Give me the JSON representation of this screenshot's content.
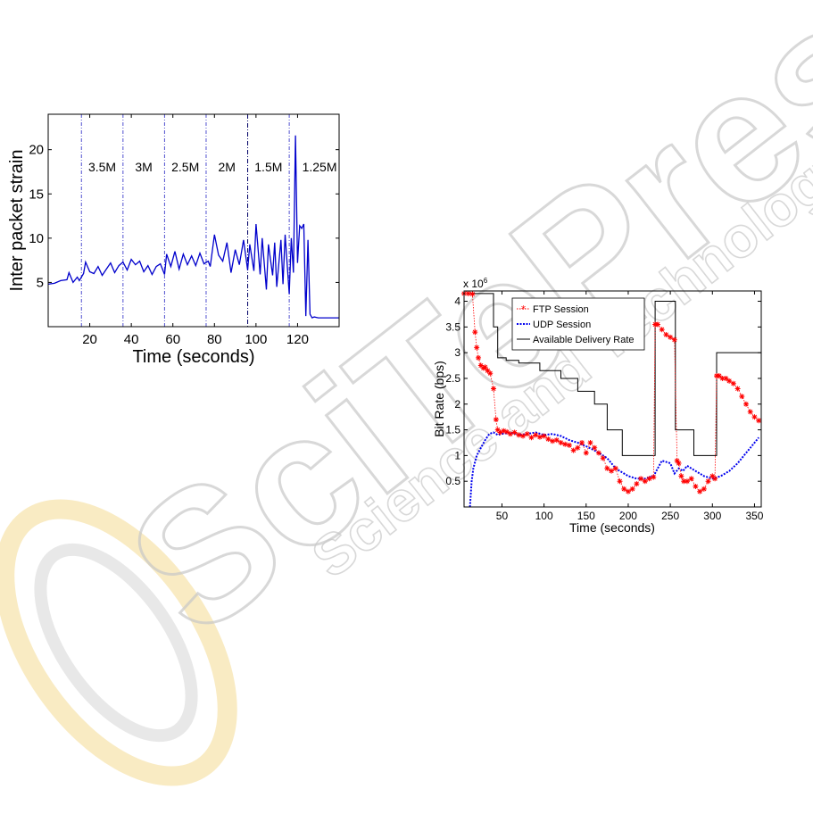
{
  "watermark": {
    "word": "SciTePress",
    "tagline": "Science and Technology Publications",
    "color": "#c8c8c8",
    "logo_color": "#f2d27a"
  },
  "chart_data": [
    {
      "type": "line",
      "title": "",
      "xlabel": "Time (seconds)",
      "ylabel": "Inter packet strain",
      "xlim": [
        0,
        140
      ],
      "ylim": [
        0,
        24
      ],
      "xticks": [
        20,
        40,
        60,
        80,
        100,
        120
      ],
      "yticks": [
        5,
        10,
        15,
        20
      ],
      "grid": false,
      "series": [
        {
          "color": "#0000cc",
          "x": [
            0,
            3,
            6,
            9,
            10,
            12,
            14,
            15,
            17,
            18,
            20,
            22,
            24,
            26,
            28,
            30,
            32,
            34,
            36,
            38,
            40,
            42,
            44,
            46,
            48,
            50,
            52,
            54,
            56,
            57,
            59,
            61,
            63,
            65,
            67,
            69,
            71,
            73,
            75,
            77,
            78,
            80,
            82,
            84,
            86,
            88,
            90,
            92,
            94,
            96,
            97,
            99,
            100,
            102,
            103,
            105,
            106,
            108,
            109,
            110,
            112,
            113,
            114,
            116,
            117,
            118,
            119,
            120,
            121,
            122,
            123,
            124,
            125,
            126,
            127,
            128,
            130,
            135,
            140
          ],
          "y": [
            4.8,
            4.9,
            5.2,
            5.3,
            6.1,
            5.0,
            5.6,
            5.2,
            6.0,
            7.3,
            6.2,
            6.0,
            6.8,
            5.8,
            6.5,
            7.2,
            6.1,
            6.9,
            7.3,
            6.4,
            7.6,
            7.0,
            7.4,
            6.2,
            6.9,
            5.9,
            6.8,
            7.1,
            5.9,
            8.2,
            6.8,
            8.5,
            6.5,
            8.2,
            7.0,
            8.0,
            6.9,
            8.3,
            7.1,
            7.4,
            6.8,
            10.4,
            8.1,
            7.4,
            9.5,
            6.1,
            8.7,
            7.0,
            9.8,
            6.4,
            9.3,
            6.3,
            11.6,
            5.9,
            10.0,
            4.2,
            9.3,
            5.8,
            9.5,
            4.5,
            9.8,
            4.8,
            10.4,
            3.7,
            10.0,
            6.1,
            21.6,
            7.2,
            11.4,
            11.1,
            11.6,
            1.2,
            9.8,
            1.4,
            1.0,
            1.1,
            1.0,
            1.0,
            1.0
          ]
        }
      ],
      "phase_boundaries": [
        16,
        36,
        56,
        76,
        96,
        116
      ],
      "phase_labels": [
        "3.5M",
        "3M",
        "2.5M",
        "2M",
        "1.5M",
        "1.25M"
      ]
    },
    {
      "type": "line",
      "title": "",
      "xlabel": "Time (seconds)",
      "ylabel": "Bit Rate (bps)",
      "y_multiplier": "x 10",
      "y_exponent": "6",
      "xlim": [
        5,
        358
      ],
      "ylim": [
        0,
        4.2
      ],
      "xticks": [
        50,
        100,
        150,
        200,
        250,
        300,
        350
      ],
      "yticks": [
        0.5,
        1,
        1.5,
        2,
        2.5,
        3,
        3.5,
        4
      ],
      "grid": false,
      "legend_position": "top-right",
      "series": [
        {
          "name": "FTP Session",
          "color": "#ff0000",
          "x": [
            5,
            10,
            15,
            18,
            20,
            22,
            25,
            28,
            30,
            33,
            36,
            40,
            43,
            45,
            48,
            52,
            56,
            60,
            65,
            70,
            75,
            80,
            85,
            90,
            95,
            100,
            105,
            110,
            115,
            120,
            125,
            130,
            135,
            140,
            145,
            150,
            155,
            160,
            165,
            170,
            175,
            180,
            185,
            190,
            195,
            200,
            205,
            210,
            215,
            220,
            225,
            230,
            232,
            235,
            240,
            245,
            250,
            255,
            258,
            260,
            263,
            266,
            270,
            275,
            280,
            285,
            290,
            295,
            300,
            303,
            305,
            308,
            312,
            316,
            320,
            325,
            330,
            335,
            340,
            345,
            350,
            355
          ],
          "y": [
            4.15,
            4.15,
            4.14,
            3.4,
            3.1,
            2.9,
            2.75,
            2.7,
            2.72,
            2.65,
            2.6,
            2.3,
            1.7,
            1.5,
            1.45,
            1.48,
            1.46,
            1.42,
            1.45,
            1.4,
            1.38,
            1.42,
            1.35,
            1.4,
            1.36,
            1.38,
            1.32,
            1.28,
            1.3,
            1.25,
            1.22,
            1.2,
            1.1,
            1.15,
            1.25,
            1.05,
            1.25,
            1.15,
            1.05,
            0.95,
            0.75,
            0.7,
            0.75,
            0.5,
            0.35,
            0.3,
            0.35,
            0.45,
            0.55,
            0.5,
            0.55,
            0.58,
            3.55,
            3.55,
            3.45,
            3.35,
            3.3,
            3.25,
            0.9,
            0.85,
            0.6,
            0.5,
            0.5,
            0.55,
            0.4,
            0.3,
            0.35,
            0.5,
            0.6,
            0.55,
            2.55,
            2.55,
            2.5,
            2.5,
            2.45,
            2.4,
            2.3,
            2.15,
            2.0,
            1.85,
            1.75,
            1.68
          ]
        },
        {
          "name": "UDP Session",
          "color": "#0000ee",
          "x": [
            12,
            14,
            16,
            20,
            25,
            30,
            35,
            40,
            45,
            50,
            60,
            70,
            80,
            90,
            100,
            110,
            120,
            130,
            140,
            150,
            160,
            165,
            170,
            175,
            180,
            185,
            190,
            195,
            200,
            210,
            220,
            230,
            235,
            240,
            250,
            255,
            260,
            265,
            270,
            280,
            290,
            300,
            310,
            320,
            330,
            340,
            350,
            355
          ],
          "y": [
            0.0,
            0.5,
            0.75,
            1.0,
            1.15,
            1.3,
            1.42,
            1.45,
            1.4,
            1.42,
            1.45,
            1.4,
            1.42,
            1.45,
            1.4,
            1.42,
            1.38,
            1.3,
            1.25,
            1.18,
            1.1,
            1.05,
            1.0,
            0.95,
            0.85,
            0.75,
            0.7,
            0.65,
            0.6,
            0.55,
            0.55,
            0.6,
            0.75,
            0.9,
            0.85,
            0.65,
            0.75,
            0.7,
            0.8,
            0.7,
            0.6,
            0.55,
            0.6,
            0.7,
            0.85,
            1.05,
            1.25,
            1.35
          ]
        },
        {
          "name": "Available Delivery Rate",
          "color": "#000000",
          "x": [
            5,
            40,
            40,
            45,
            45,
            55,
            55,
            70,
            70,
            95,
            95,
            120,
            120,
            140,
            140,
            160,
            160,
            175,
            175,
            193,
            193,
            232,
            232,
            256,
            256,
            278,
            278,
            305,
            305,
            358
          ],
          "y": [
            4.15,
            4.15,
            3.5,
            3.5,
            2.9,
            2.9,
            2.85,
            2.85,
            2.8,
            2.8,
            2.65,
            2.65,
            2.5,
            2.5,
            2.25,
            2.25,
            2.0,
            2.0,
            1.5,
            1.5,
            1.0,
            1.0,
            4.0,
            4.0,
            1.5,
            1.5,
            1.0,
            1.0,
            3.0,
            3.0
          ]
        }
      ]
    }
  ]
}
